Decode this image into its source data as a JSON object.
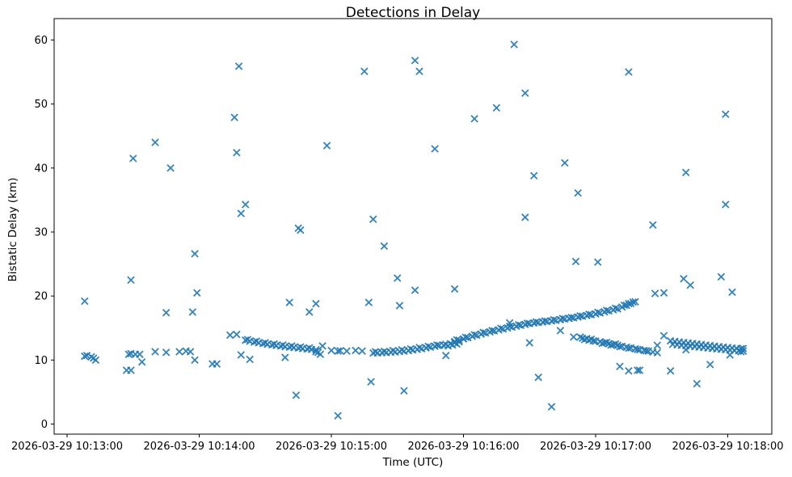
{
  "chart_data": {
    "type": "scatter",
    "title": "Detections in Delay",
    "xlabel": "Time (UTC)",
    "ylabel": "Bistatic Delay (km)",
    "marker": "x",
    "marker_color": "#1f77b4",
    "grid": false,
    "legend": "none",
    "x_axis": {
      "unit": "seconds after 2026-03-29 10:13:00 UTC",
      "tick_seconds": [
        0,
        60,
        120,
        180,
        240,
        300
      ],
      "tick_labels": [
        "2026-03-29 10:13:00",
        "2026-03-29 10:14:00",
        "2026-03-29 10:15:00",
        "2026-03-29 10:16:00",
        "2026-03-29 10:17:00",
        "2026-03-29 10:18:00"
      ],
      "range_seconds": [
        -5.9,
        320.1
      ]
    },
    "y_axis": {
      "ticks": [
        0,
        10,
        20,
        30,
        40,
        50,
        60
      ],
      "range": [
        -1.6,
        63.3
      ]
    },
    "points": [
      [
        8,
        19.2
      ],
      [
        8,
        10.6
      ],
      [
        9,
        10.7
      ],
      [
        11,
        10.5
      ],
      [
        12,
        10.3
      ],
      [
        13,
        10.0
      ],
      [
        27,
        8.4
      ],
      [
        29,
        8.4
      ],
      [
        28,
        10.9
      ],
      [
        29,
        11.0
      ],
      [
        31,
        10.9
      ],
      [
        33,
        10.9
      ],
      [
        29,
        22.5
      ],
      [
        30,
        41.5
      ],
      [
        34,
        9.7
      ],
      [
        40,
        11.3
      ],
      [
        45,
        11.2
      ],
      [
        51,
        11.3
      ],
      [
        54,
        11.4
      ],
      [
        56,
        11.3
      ],
      [
        40,
        44.0
      ],
      [
        45,
        17.4
      ],
      [
        47,
        40.0
      ],
      [
        57,
        17.5
      ],
      [
        58,
        10.0
      ],
      [
        58,
        26.6
      ],
      [
        59,
        20.5
      ],
      [
        66,
        9.4
      ],
      [
        68,
        9.4
      ],
      [
        74,
        13.9
      ],
      [
        77,
        14.0
      ],
      [
        76,
        47.9
      ],
      [
        77,
        42.4
      ],
      [
        78,
        55.9
      ],
      [
        79,
        32.9
      ],
      [
        79,
        10.8
      ],
      [
        81,
        34.3
      ],
      [
        83,
        10.1
      ],
      [
        99,
        10.4
      ],
      [
        101,
        19.0
      ],
      [
        104,
        4.5
      ],
      [
        105,
        30.6
      ],
      [
        106,
        30.3
      ],
      [
        110,
        17.5
      ],
      [
        113,
        18.8
      ],
      [
        116,
        12.2
      ],
      [
        118,
        43.5
      ],
      [
        123,
        1.3
      ],
      [
        113,
        11.3
      ],
      [
        114,
        11.2
      ],
      [
        115,
        10.9
      ],
      [
        120,
        11.5
      ],
      [
        123,
        11.4
      ],
      [
        124,
        11.45
      ],
      [
        127,
        11.4
      ],
      [
        131,
        11.5
      ],
      [
        134,
        11.4
      ],
      [
        135,
        55.1
      ],
      [
        137,
        19.0
      ],
      [
        138,
        6.6
      ],
      [
        139,
        32.0
      ],
      [
        144,
        27.8
      ],
      [
        150,
        22.8
      ],
      [
        151,
        18.5
      ],
      [
        153,
        5.2
      ],
      [
        158,
        20.9
      ],
      [
        158,
        56.8
      ],
      [
        160,
        55.1
      ],
      [
        167,
        43.0
      ],
      [
        172,
        10.7
      ],
      [
        176,
        21.1
      ],
      [
        185,
        47.7
      ],
      [
        195,
        49.4
      ],
      [
        201,
        15.8
      ],
      [
        203,
        59.3
      ],
      [
        208,
        51.7
      ],
      [
        208,
        32.3
      ],
      [
        210,
        12.7
      ],
      [
        212,
        38.8
      ],
      [
        214,
        7.3
      ],
      [
        220,
        2.7
      ],
      [
        224,
        14.6
      ],
      [
        226,
        40.8
      ],
      [
        231,
        25.4
      ],
      [
        232,
        36.1
      ],
      [
        241,
        25.3
      ],
      [
        251,
        9.0
      ],
      [
        255,
        8.3
      ],
      [
        259,
        8.4
      ],
      [
        260,
        8.4
      ],
      [
        255,
        55.0
      ],
      [
        266,
        31.1
      ],
      [
        267,
        20.4
      ],
      [
        271,
        20.5
      ],
      [
        268,
        12.3
      ],
      [
        271,
        13.8
      ],
      [
        274,
        8.3
      ],
      [
        280,
        22.7
      ],
      [
        281,
        39.3
      ],
      [
        281,
        11.6
      ],
      [
        283,
        21.7
      ],
      [
        286,
        6.3
      ],
      [
        292,
        9.3
      ],
      [
        297,
        23.0
      ],
      [
        299,
        48.4
      ],
      [
        299,
        34.3
      ],
      [
        301,
        10.8
      ],
      [
        302,
        20.6
      ],
      [
        81,
        13.1
      ],
      [
        83,
        12.95
      ],
      [
        85,
        12.82
      ],
      [
        87,
        12.7
      ],
      [
        89,
        12.58
      ],
      [
        91,
        12.47
      ],
      [
        93,
        12.37
      ],
      [
        95,
        12.27
      ],
      [
        97,
        12.18
      ],
      [
        99,
        12.1
      ],
      [
        101,
        12.02
      ],
      [
        103,
        11.95
      ],
      [
        105,
        11.88
      ],
      [
        107,
        11.8
      ],
      [
        109,
        11.73
      ],
      [
        111,
        11.66
      ],
      [
        113,
        11.6
      ],
      [
        82,
        13.2
      ],
      [
        86,
        12.95
      ],
      [
        90,
        12.7
      ],
      [
        94,
        12.5
      ],
      [
        98,
        12.35
      ],
      [
        102,
        12.2
      ],
      [
        106,
        12.05
      ],
      [
        110,
        11.9
      ],
      [
        139,
        11.1
      ],
      [
        141,
        11.12
      ],
      [
        143,
        11.15
      ],
      [
        145,
        11.18
      ],
      [
        147,
        11.22
      ],
      [
        149,
        11.27
      ],
      [
        151,
        11.33
      ],
      [
        153,
        11.4
      ],
      [
        155,
        11.48
      ],
      [
        157,
        11.57
      ],
      [
        159,
        11.67
      ],
      [
        161,
        11.78
      ],
      [
        163,
        11.9
      ],
      [
        165,
        12.02
      ],
      [
        167,
        12.15
      ],
      [
        169,
        12.28
      ],
      [
        140,
        11.3
      ],
      [
        144,
        11.35
      ],
      [
        148,
        11.5
      ],
      [
        152,
        11.6
      ],
      [
        156,
        11.75
      ],
      [
        160,
        11.95
      ],
      [
        164,
        12.15
      ],
      [
        168,
        12.35
      ],
      [
        171,
        12.3
      ],
      [
        172,
        12.45
      ],
      [
        173,
        12.2
      ],
      [
        174,
        12.55
      ],
      [
        175,
        12.35
      ],
      [
        176,
        12.7
      ],
      [
        177,
        12.5
      ],
      [
        178,
        12.85
      ],
      [
        176,
        12.9
      ],
      [
        178,
        13.1
      ],
      [
        180,
        13.3
      ],
      [
        182,
        13.5
      ],
      [
        184,
        13.7
      ],
      [
        186,
        13.88
      ],
      [
        188,
        14.05
      ],
      [
        190,
        14.22
      ],
      [
        192,
        14.4
      ],
      [
        194,
        14.55
      ],
      [
        196,
        14.7
      ],
      [
        198,
        14.85
      ],
      [
        200,
        15.0
      ],
      [
        202,
        15.14
      ],
      [
        204,
        15.28
      ],
      [
        206,
        15.42
      ],
      [
        208,
        15.56
      ],
      [
        210,
        15.7
      ],
      [
        212,
        15.78
      ],
      [
        214,
        15.86
      ],
      [
        216,
        15.94
      ],
      [
        218,
        16.02
      ],
      [
        220,
        16.1
      ],
      [
        222,
        16.2
      ],
      [
        224,
        16.3
      ],
      [
        226,
        16.4
      ],
      [
        228,
        16.5
      ],
      [
        230,
        16.6
      ],
      [
        232,
        16.72
      ],
      [
        234,
        16.84
      ],
      [
        236,
        16.96
      ],
      [
        238,
        17.08
      ],
      [
        240,
        17.2
      ],
      [
        242,
        17.36
      ],
      [
        244,
        17.52
      ],
      [
        246,
        17.68
      ],
      [
        248,
        17.84
      ],
      [
        250,
        18.0
      ],
      [
        252,
        18.27
      ],
      [
        254,
        18.55
      ],
      [
        256,
        18.82
      ],
      [
        258,
        19.1
      ],
      [
        177,
        13.15
      ],
      [
        181,
        13.55
      ],
      [
        185,
        13.95
      ],
      [
        189,
        14.3
      ],
      [
        193,
        14.6
      ],
      [
        197,
        14.95
      ],
      [
        201,
        15.25
      ],
      [
        205,
        15.5
      ],
      [
        209,
        15.75
      ],
      [
        213,
        15.95
      ],
      [
        217,
        16.1
      ],
      [
        221,
        16.3
      ],
      [
        225,
        16.5
      ],
      [
        229,
        16.65
      ],
      [
        233,
        16.9
      ],
      [
        237,
        17.15
      ],
      [
        241,
        17.45
      ],
      [
        245,
        17.75
      ],
      [
        249,
        18.1
      ],
      [
        253,
        18.55
      ],
      [
        255,
        18.8
      ],
      [
        257,
        19.05
      ],
      [
        230,
        13.6
      ],
      [
        233,
        13.6
      ],
      [
        234,
        13.4
      ],
      [
        235,
        13.2
      ],
      [
        236,
        13.35
      ],
      [
        237,
        13.1
      ],
      [
        238,
        13.25
      ],
      [
        239,
        13.0
      ],
      [
        240,
        12.95
      ],
      [
        242,
        12.85
      ],
      [
        244,
        12.7
      ],
      [
        246,
        12.55
      ],
      [
        248,
        12.4
      ],
      [
        250,
        12.3
      ],
      [
        252,
        12.15
      ],
      [
        254,
        12.0
      ],
      [
        256,
        11.9
      ],
      [
        258,
        11.75
      ],
      [
        260,
        11.6
      ],
      [
        262,
        11.5
      ],
      [
        264,
        11.4
      ],
      [
        266,
        11.25
      ],
      [
        268,
        11.15
      ],
      [
        243,
        12.6
      ],
      [
        245,
        12.75
      ],
      [
        247,
        12.35
      ],
      [
        249,
        12.5
      ],
      [
        251,
        12.1
      ],
      [
        255,
        11.85
      ],
      [
        259,
        11.65
      ],
      [
        263,
        11.45
      ],
      [
        274,
        13.0
      ],
      [
        276,
        12.9
      ],
      [
        278,
        12.82
      ],
      [
        280,
        12.74
      ],
      [
        282,
        12.66
      ],
      [
        284,
        12.58
      ],
      [
        286,
        12.5
      ],
      [
        288,
        12.42
      ],
      [
        290,
        12.34
      ],
      [
        292,
        12.26
      ],
      [
        294,
        12.18
      ],
      [
        296,
        12.1
      ],
      [
        298,
        12.02
      ],
      [
        300,
        11.95
      ],
      [
        302,
        11.88
      ],
      [
        304,
        11.82
      ],
      [
        306,
        11.76
      ],
      [
        275,
        12.45
      ],
      [
        277,
        12.38
      ],
      [
        279,
        12.3
      ],
      [
        281,
        12.24
      ],
      [
        283,
        12.16
      ],
      [
        285,
        12.1
      ],
      [
        287,
        12.02
      ],
      [
        289,
        11.95
      ],
      [
        291,
        11.88
      ],
      [
        293,
        11.8
      ],
      [
        295,
        11.74
      ],
      [
        297,
        11.68
      ],
      [
        299,
        11.62
      ],
      [
        301,
        11.56
      ],
      [
        303,
        11.5
      ],
      [
        305,
        11.45
      ],
      [
        307,
        11.4
      ],
      [
        307,
        11.8
      ],
      [
        306,
        11.3
      ]
    ]
  }
}
